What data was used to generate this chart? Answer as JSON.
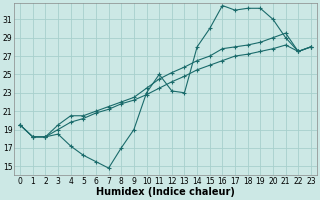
{
  "xlabel": "Humidex (Indice chaleur)",
  "bg_color": "#cce8e5",
  "grid_color": "#a8d0cc",
  "line_color": "#1a6b6b",
  "xlim": [
    -0.5,
    23.5
  ],
  "ylim": [
    14.0,
    32.8
  ],
  "xticks": [
    0,
    1,
    2,
    3,
    4,
    5,
    6,
    7,
    8,
    9,
    10,
    11,
    12,
    13,
    14,
    15,
    16,
    17,
    18,
    19,
    20,
    21,
    22,
    23
  ],
  "yticks": [
    15,
    17,
    19,
    21,
    23,
    25,
    27,
    29,
    31
  ],
  "line1_x": [
    0,
    1,
    2,
    3,
    4,
    5,
    6,
    7,
    8,
    9,
    10,
    11,
    12,
    13,
    14,
    15,
    16,
    17,
    18,
    19,
    20,
    21,
    22,
    23
  ],
  "line1_y": [
    19.5,
    18.2,
    18.2,
    18.5,
    17.2,
    16.2,
    15.5,
    14.8,
    17.0,
    19.0,
    23.0,
    25.0,
    23.2,
    23.0,
    28.0,
    30.0,
    32.5,
    32.0,
    32.2,
    32.2,
    31.0,
    29.0,
    27.5,
    28.0
  ],
  "line2_x": [
    0,
    1,
    2,
    3,
    4,
    5,
    6,
    7,
    8,
    9,
    10,
    11,
    12,
    13,
    14,
    15,
    16,
    17,
    18,
    19,
    20,
    21,
    22,
    23
  ],
  "line2_y": [
    19.5,
    18.2,
    18.2,
    19.5,
    20.5,
    20.5,
    21.0,
    21.5,
    22.0,
    22.5,
    23.5,
    24.5,
    25.2,
    25.8,
    26.5,
    27.0,
    27.8,
    28.0,
    28.2,
    28.5,
    29.0,
    29.5,
    27.5,
    28.0
  ],
  "line3_x": [
    0,
    1,
    2,
    3,
    4,
    5,
    6,
    7,
    8,
    9,
    10,
    11,
    12,
    13,
    14,
    15,
    16,
    17,
    18,
    19,
    20,
    21,
    22,
    23
  ],
  "line3_y": [
    19.5,
    18.2,
    18.2,
    19.0,
    19.8,
    20.2,
    20.8,
    21.2,
    21.8,
    22.2,
    22.8,
    23.5,
    24.2,
    24.8,
    25.5,
    26.0,
    26.5,
    27.0,
    27.2,
    27.5,
    27.8,
    28.2,
    27.5,
    28.0
  ],
  "tick_fontsize": 5.5,
  "xlabel_fontsize": 7,
  "markersize": 2.5,
  "linewidth": 0.8
}
